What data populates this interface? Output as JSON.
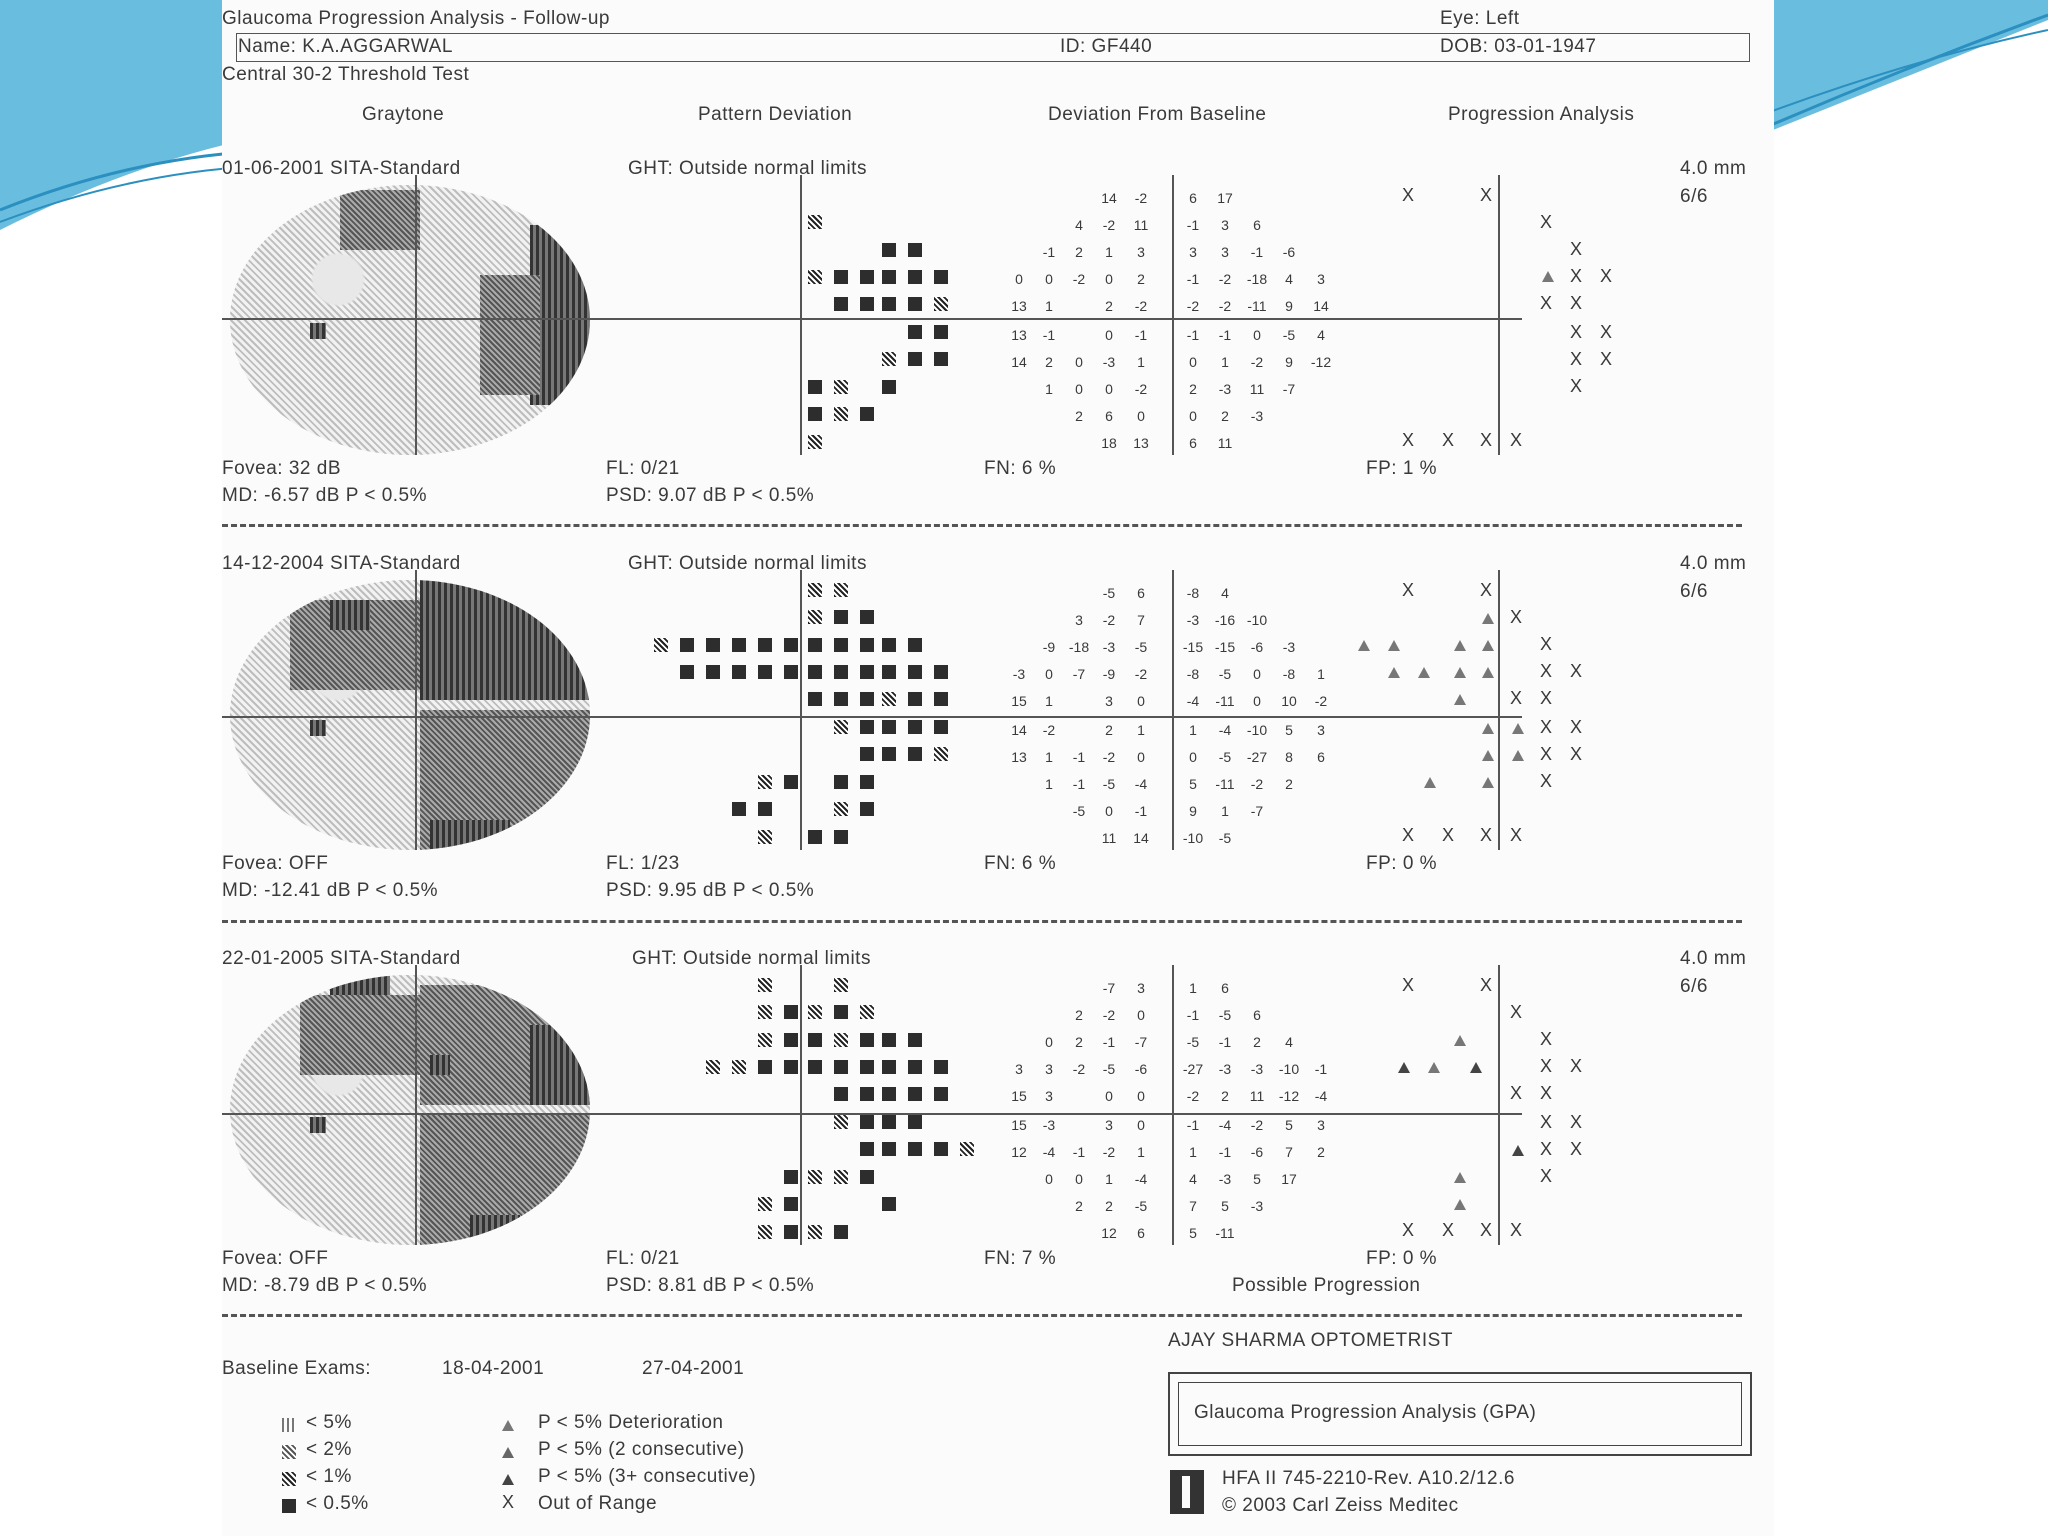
{
  "header": {
    "title": "Glaucoma Progression Analysis - Follow-up",
    "eye": "Eye: Left",
    "name": "Name: K.A.AGGARWAL",
    "id": "ID: GF440",
    "dob": "DOB: 03-01-1947",
    "test": "Central 30-2 Threshold Test"
  },
  "columns": {
    "graytone": "Graytone",
    "pattern_deviation": "Pattern Deviation",
    "deviation_from_baseline": "Deviation From Baseline",
    "progression_analysis": "Progression Analysis"
  },
  "exams": [
    {
      "date": "01-06-2001  SITA-Standard",
      "ght": "GHT: Outside normal limits",
      "pupil": "4.0 mm",
      "acuity": "6/6",
      "fovea": "Fovea: 32 dB",
      "fl": "FL: 0/21",
      "fn": "FN:  6 %",
      "fp": "FP:  1 %",
      "md": "MD:  -6.57 dB  P < 0.5%",
      "psd": "PSD:  9.07 dB  P < 0.5%",
      "deviation_rows": [
        [
          "14",
          "-2",
          "6",
          "17"
        ],
        [
          "4",
          "-2",
          "11",
          "-1",
          "3",
          "6"
        ],
        [
          "-1",
          "2",
          "1",
          "3",
          "3",
          "3",
          "-1",
          "-6"
        ],
        [
          "0",
          "0",
          "-2",
          "0",
          "2",
          "-1",
          "-2",
          "-18",
          "4",
          "3"
        ],
        [
          "13",
          "1",
          "",
          "2",
          "-2",
          "-2",
          "-2",
          "-11",
          "9",
          "14"
        ],
        [
          "13",
          "-1",
          "",
          "0",
          "-1",
          "-1",
          "-1",
          "0",
          "-5",
          "4"
        ],
        [
          "14",
          "2",
          "0",
          "-3",
          "1",
          "0",
          "1",
          "-2",
          "9",
          "-12"
        ],
        [
          "1",
          "0",
          "0",
          "-2",
          "2",
          "-3",
          "11",
          "-7"
        ],
        [
          "2",
          "6",
          "0",
          "0",
          "2",
          "-3"
        ],
        [
          "18",
          "13",
          "6",
          "11"
        ]
      ]
    },
    {
      "date": "14-12-2004  SITA-Standard",
      "ght": "GHT: Outside normal limits",
      "pupil": "4.0 mm",
      "acuity": "6/6",
      "fovea": "Fovea: OFF",
      "fl": "FL: 1/23",
      "fn": "FN:  6 %",
      "fp": "FP:  0 %",
      "md": "MD: -12.41 dB  P < 0.5%",
      "psd": "PSD:  9.95 dB  P < 0.5%",
      "deviation_rows": [
        [
          "-5",
          "6",
          "-8",
          "4"
        ],
        [
          "3",
          "-2",
          "7",
          "-3",
          "-16",
          "-10"
        ],
        [
          "-9",
          "-18",
          "-3",
          "-5",
          "-15",
          "-15",
          "-6",
          "-3"
        ],
        [
          "-3",
          "0",
          "-7",
          "-9",
          "-2",
          "-8",
          "-5",
          "0",
          "-8",
          "1"
        ],
        [
          "15",
          "1",
          "",
          "3",
          "0",
          "-4",
          "-11",
          "0",
          "10",
          "-2"
        ],
        [
          "14",
          "-2",
          "",
          "2",
          "1",
          "1",
          "-4",
          "-10",
          "5",
          "3"
        ],
        [
          "13",
          "1",
          "-1",
          "-2",
          "0",
          "0",
          "-5",
          "-27",
          "8",
          "6"
        ],
        [
          "1",
          "-1",
          "-5",
          "-4",
          "5",
          "-11",
          "-2",
          "2"
        ],
        [
          "-5",
          "0",
          "-1",
          "9",
          "1",
          "-7"
        ],
        [
          "11",
          "14",
          "-10",
          "-5"
        ]
      ]
    },
    {
      "date": "22-01-2005  SITA-Standard",
      "ght": "GHT: Outside normal limits",
      "pupil": "4.0 mm",
      "acuity": "6/6",
      "fovea": "Fovea: OFF",
      "fl": "FL: 0/21",
      "fn": "FN:  7 %",
      "fp": "FP:  0 %",
      "md": "MD:  -8.79 dB  P < 0.5%",
      "psd": "PSD:  8.81 dB  P < 0.5%",
      "possible": "Possible Progression",
      "deviation_rows": [
        [
          "-7",
          "3",
          "1",
          "6"
        ],
        [
          "2",
          "-2",
          "0",
          "-1",
          "-5",
          "6"
        ],
        [
          "0",
          "2",
          "-1",
          "-7",
          "-5",
          "-1",
          "2",
          "4"
        ],
        [
          "3",
          "3",
          "-2",
          "-5",
          "-6",
          "-27",
          "-3",
          "-3",
          "-10",
          "-1"
        ],
        [
          "15",
          "3",
          "",
          "0",
          "0",
          "-2",
          "2",
          "11",
          "-12",
          "-4"
        ],
        [
          "15",
          "-3",
          "",
          "3",
          "0",
          "-1",
          "-4",
          "-2",
          "5",
          "3"
        ],
        [
          "12",
          "-4",
          "-1",
          "-2",
          "1",
          "1",
          "-1",
          "-6",
          "7",
          "2"
        ],
        [
          "0",
          "0",
          "1",
          "-4",
          "4",
          "-3",
          "5",
          "17"
        ],
        [
          "2",
          "2",
          "-5",
          "7",
          "5",
          "-3"
        ],
        [
          "12",
          "6",
          "5",
          "-11"
        ]
      ]
    }
  ],
  "footer": {
    "optometrist": "AJAY SHARMA OPTOMETRIST",
    "baseline_label": "Baseline Exams:",
    "baseline_1": "18-04-2001",
    "baseline_2": "27-04-2001",
    "gpa_title": "Glaucoma Progression Analysis (GPA)",
    "device": "HFA II 745-2210-Rev. A10.2/12.6",
    "copyright": "© 2003 Carl Zeiss Meditec"
  },
  "legend": {
    "p5": "< 5%",
    "p2": "< 2%",
    "p1": "< 1%",
    "p05": "< 0.5%",
    "det": "P < 5% Deterioration",
    "det2": "P < 5% (2 consecutive)",
    "det3": "P < 5% (3+ consecutive)",
    "oor": "Out of Range"
  },
  "colors": {
    "background": "#ffffff",
    "swoosh": "#4fb3d9",
    "ink": "#3a3a3a"
  }
}
